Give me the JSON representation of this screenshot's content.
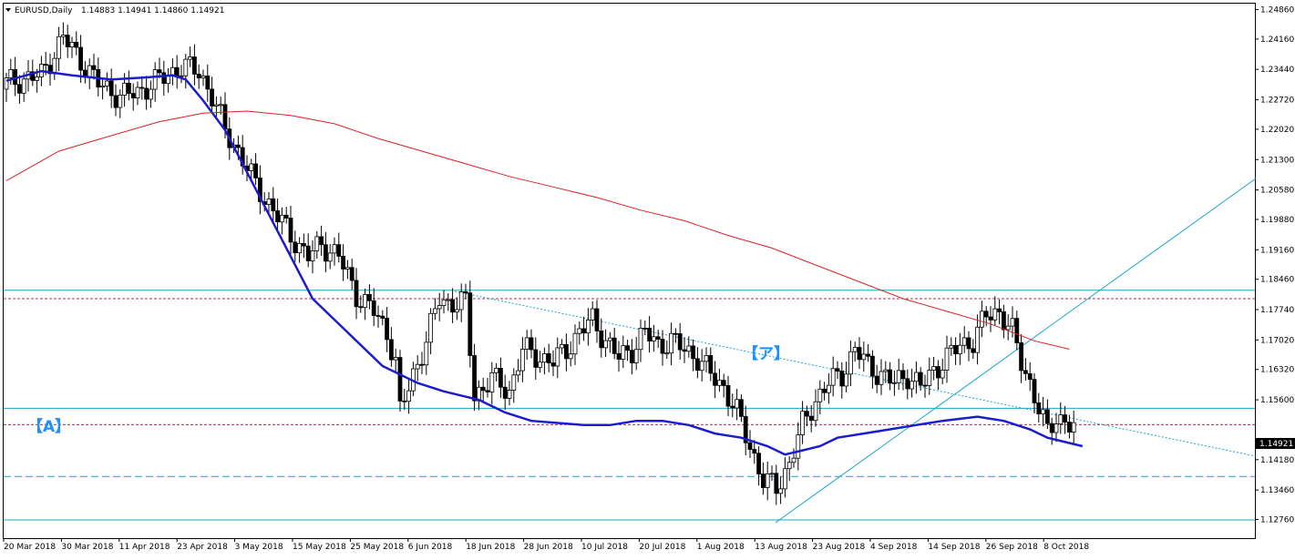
{
  "header": {
    "symbol": "EURUSD,Daily",
    "ohlc": "1.14883 1.14941 1.14860 1.14921"
  },
  "colors": {
    "up_candle": "#ffffff",
    "down_candle": "#000000",
    "ma_fast": "#1c1ccc",
    "ma_slow": "#dd2222",
    "horizontal_lines": "#1ba4cf",
    "dotted_red": "#b5304d",
    "annotation": "#1e90ff"
  },
  "chart_data": {
    "type": "candlestick",
    "price_axis_labels": [
      "1.24860",
      "1.24160",
      "1.23440",
      "1.22720",
      "1.22020",
      "1.21300",
      "1.20580",
      "1.19880",
      "1.19160",
      "1.18460",
      "1.17740",
      "1.17020",
      "1.16320",
      "1.15600",
      "1.14180",
      "1.13460",
      "1.12760"
    ],
    "current_price": "1.14921",
    "ylim": [
      1.1262,
      1.25
    ],
    "x_labels": [
      "20 Mar 2018",
      "30 Mar 2018",
      "11 Apr 2018",
      "23 Apr 2018",
      "3 May 2018",
      "15 May 2018",
      "25 May 2018",
      "6 Jun 2018",
      "18 Jun 2018",
      "28 Jun 2018",
      "10 Jul 2018",
      "20 Jul 2018",
      "1 Aug 2018",
      "13 Aug 2018",
      "23 Aug 2018",
      "4 Sep 2018",
      "14 Sep 2018",
      "26 Sep 2018",
      "8 Oct 2018"
    ],
    "close_path": [
      [
        0,
        1.2312
      ],
      [
        8,
        1.233
      ],
      [
        13,
        1.242
      ],
      [
        16,
        1.238
      ],
      [
        21,
        1.231
      ],
      [
        26,
        1.228
      ],
      [
        30,
        1.229
      ],
      [
        35,
        1.232
      ],
      [
        40,
        1.235
      ],
      [
        44,
        1.234
      ],
      [
        47,
        1.228
      ],
      [
        50,
        1.22
      ],
      [
        53,
        1.215
      ],
      [
        57,
        1.207
      ],
      [
        61,
        1.201
      ],
      [
        65,
        1.195
      ],
      [
        69,
        1.19
      ],
      [
        72,
        1.193
      ],
      [
        76,
        1.19
      ],
      [
        80,
        1.181
      ],
      [
        84,
        1.177
      ],
      [
        87,
        1.172
      ],
      [
        89,
        1.165
      ],
      [
        90,
        1.153
      ],
      [
        93,
        1.162
      ],
      [
        96,
        1.17
      ],
      [
        99,
        1.18
      ],
      [
        101,
        1.179
      ],
      [
        105,
        1.179
      ],
      [
        107,
        1.157
      ],
      [
        111,
        1.161
      ],
      [
        115,
        1.158
      ],
      [
        118,
        1.168
      ],
      [
        122,
        1.166
      ],
      [
        125,
        1.165
      ],
      [
        128,
        1.168
      ],
      [
        131,
        1.172
      ],
      [
        134,
        1.175
      ],
      [
        137,
        1.17
      ],
      [
        140,
        1.166
      ],
      [
        143,
        1.168
      ],
      [
        146,
        1.172
      ],
      [
        149,
        1.169
      ],
      [
        152,
        1.17
      ],
      [
        155,
        1.168
      ],
      [
        158,
        1.166
      ],
      [
        161,
        1.162
      ],
      [
        164,
        1.159
      ],
      [
        167,
        1.153
      ],
      [
        170,
        1.145
      ],
      [
        173,
        1.137
      ],
      [
        176,
        1.135
      ],
      [
        179,
        1.141
      ],
      [
        182,
        1.15
      ],
      [
        185,
        1.156
      ],
      [
        188,
        1.16
      ],
      [
        191,
        1.162
      ],
      [
        194,
        1.168
      ],
      [
        197,
        1.164
      ],
      [
        200,
        1.162
      ],
      [
        203,
        1.16
      ],
      [
        206,
        1.162
      ],
      [
        209,
        1.159
      ],
      [
        212,
        1.163
      ],
      [
        215,
        1.166
      ],
      [
        218,
        1.169
      ],
      [
        221,
        1.17
      ],
      [
        224,
        1.176
      ],
      [
        227,
        1.177
      ],
      [
        230,
        1.172
      ],
      [
        232,
        1.165
      ],
      [
        234,
        1.16
      ],
      [
        236,
        1.154
      ],
      [
        238,
        1.148
      ],
      [
        240,
        1.152
      ],
      [
        242,
        1.151
      ],
      [
        244,
        1.1492
      ]
    ],
    "series": [
      {
        "values": [
          [
            0,
            1.2317
          ],
          [
            8,
            1.234
          ],
          [
            15,
            1.233
          ],
          [
            24,
            1.232
          ],
          [
            32,
            1.2325
          ],
          [
            38,
            1.233
          ],
          [
            41,
            1.232
          ],
          [
            45,
            1.227
          ],
          [
            50,
            1.22
          ],
          [
            55,
            1.21
          ],
          [
            62,
            1.196
          ],
          [
            70,
            1.18
          ],
          [
            78,
            1.172
          ],
          [
            86,
            1.164
          ],
          [
            94,
            1.16
          ],
          [
            100,
            1.158
          ],
          [
            108,
            1.156
          ],
          [
            114,
            1.153
          ],
          [
            120,
            1.151
          ],
          [
            126,
            1.1505
          ],
          [
            132,
            1.15
          ],
          [
            138,
            1.15
          ],
          [
            144,
            1.151
          ],
          [
            150,
            1.151
          ],
          [
            156,
            1.15
          ],
          [
            162,
            1.148
          ],
          [
            168,
            1.147
          ],
          [
            174,
            1.145
          ],
          [
            178,
            1.143
          ],
          [
            182,
            1.144
          ],
          [
            186,
            1.145
          ],
          [
            190,
            1.147
          ],
          [
            196,
            1.148
          ],
          [
            202,
            1.149
          ],
          [
            208,
            1.15
          ],
          [
            214,
            1.151
          ],
          [
            222,
            1.152
          ],
          [
            228,
            1.151
          ],
          [
            234,
            1.149
          ],
          [
            238,
            1.147
          ],
          [
            242,
            1.146
          ],
          [
            246,
            1.145
          ]
        ]
      },
      {
        "values": [
          [
            0,
            1.208
          ],
          [
            12,
            1.215
          ],
          [
            25,
            1.219
          ],
          [
            35,
            1.222
          ],
          [
            45,
            1.224
          ],
          [
            55,
            1.2245
          ],
          [
            65,
            1.2235
          ],
          [
            75,
            1.2215
          ],
          [
            85,
            1.218
          ],
          [
            95,
            1.215
          ],
          [
            105,
            1.212
          ],
          [
            115,
            1.209
          ],
          [
            125,
            1.2065
          ],
          [
            135,
            1.204
          ],
          [
            145,
            1.201
          ],
          [
            155,
            1.1985
          ],
          [
            165,
            1.195
          ],
          [
            175,
            1.192
          ],
          [
            185,
            1.188
          ],
          [
            195,
            1.184
          ],
          [
            205,
            1.18
          ],
          [
            215,
            1.177
          ],
          [
            225,
            1.174
          ],
          [
            235,
            1.17
          ],
          [
            243,
            1.168
          ]
        ]
      }
    ],
    "horizontal_levels": [
      1.182,
      1.154,
      1.1378,
      1.1275
    ],
    "dotted_levels": [
      1.18,
      1.1501
    ],
    "annotations": [
      "【ア】",
      "【A】"
    ]
  }
}
